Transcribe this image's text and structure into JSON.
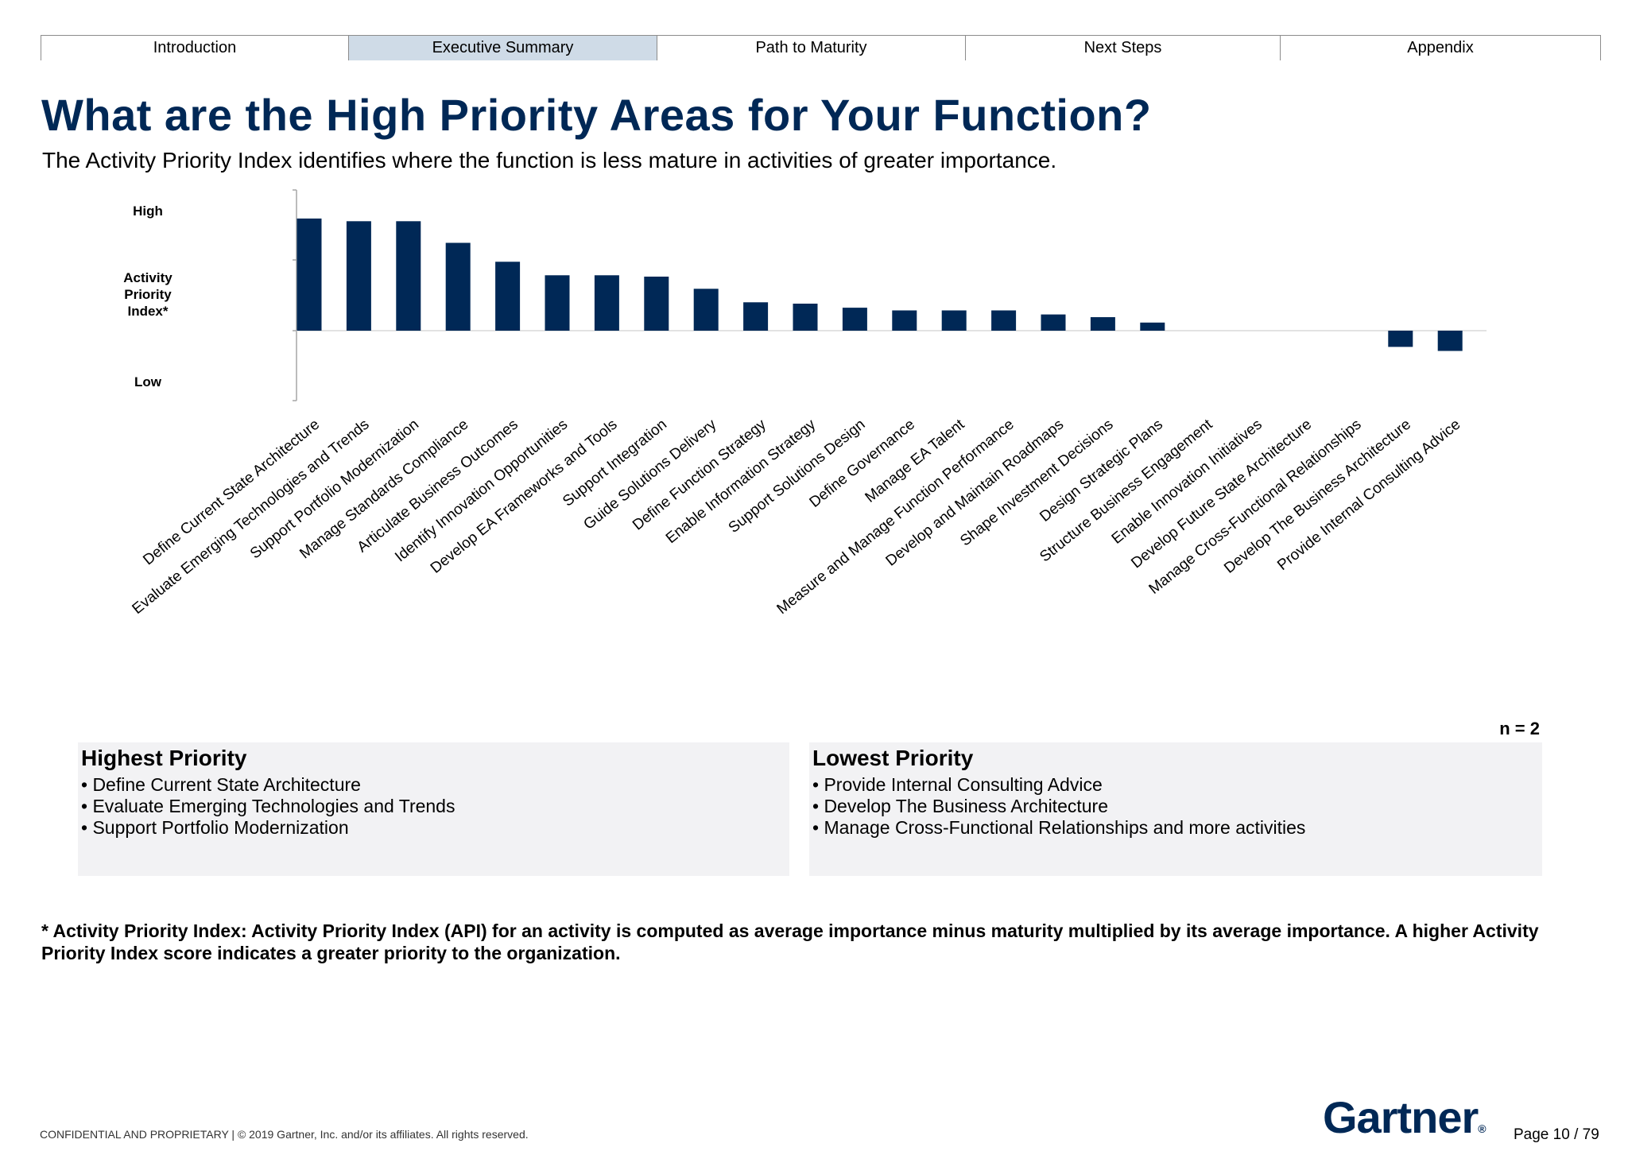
{
  "nav": {
    "tabs": [
      {
        "label": "Introduction",
        "active": false
      },
      {
        "label": "Executive Summary",
        "active": true
      },
      {
        "label": "Path to Maturity",
        "active": false
      },
      {
        "label": "Next Steps",
        "active": false
      },
      {
        "label": "Appendix",
        "active": false
      }
    ]
  },
  "header": {
    "title": "What are the High Priority Areas for Your Function?",
    "subtitle": "The Activity Priority Index identifies where the function is less mature in activities of greater importance."
  },
  "chart_data": {
    "type": "bar",
    "ylabel": "Activity Priority Index*",
    "y_tick_labels": {
      "high": "High",
      "low": "Low"
    },
    "ylim": [
      -1,
      1
    ],
    "categories": [
      "Define Current State Architecture",
      "Evaluate Emerging Technologies and Trends",
      "Support Portfolio Modernization",
      "Manage Standards Compliance",
      "Articulate Business Outcomes",
      "Identify Innovation Opportunities",
      "Develop EA Frameworks and Tools",
      "Support Integration",
      "Guide Solutions Delivery",
      "Define Function Strategy",
      "Enable Information Strategy",
      "Support Solutions Design",
      "Define Governance",
      "Manage EA Talent",
      "Measure and Manage Function Performance",
      "Develop and Maintain Roadmaps",
      "Shape Investment Decisions",
      "Design Strategic Plans",
      "Structure Business Engagement",
      "Enable Innovation Initiatives",
      "Develop Future State Architecture",
      "Manage Cross-Functional Relationships",
      "Develop The Business Architecture",
      "Provide Internal Consulting Advice"
    ],
    "values": [
      0.83,
      0.81,
      0.81,
      0.65,
      0.51,
      0.41,
      0.41,
      0.4,
      0.31,
      0.21,
      0.2,
      0.17,
      0.15,
      0.15,
      0.15,
      0.12,
      0.1,
      0.06,
      0,
      0,
      0,
      0,
      -0.12,
      -0.15
    ],
    "color": "#002856",
    "grid": false,
    "legend": "none"
  },
  "sample": {
    "label": "n = 2"
  },
  "highest": {
    "title": "Highest Priority",
    "items": [
      "• Define Current State Architecture",
      "• Evaluate Emerging Technologies and Trends",
      "• Support Portfolio Modernization"
    ]
  },
  "lowest": {
    "title": "Lowest Priority",
    "items": [
      "• Provide Internal Consulting Advice",
      "• Develop The Business Architecture",
      "• Manage Cross-Functional Relationships and more activities"
    ]
  },
  "footnote": "* Activity Priority Index: Activity Priority Index (API) for an activity is computed as average importance minus maturity multiplied by its average importance. A higher Activity Priority Index score indicates a greater priority to the organization.",
  "footer": {
    "confidential": "CONFIDENTIAL AND PROPRIETARY  |  © 2019 Gartner, Inc. and/or its affiliates. All rights reserved.",
    "logo": "Gartner",
    "page": "Page 10 / 79"
  }
}
